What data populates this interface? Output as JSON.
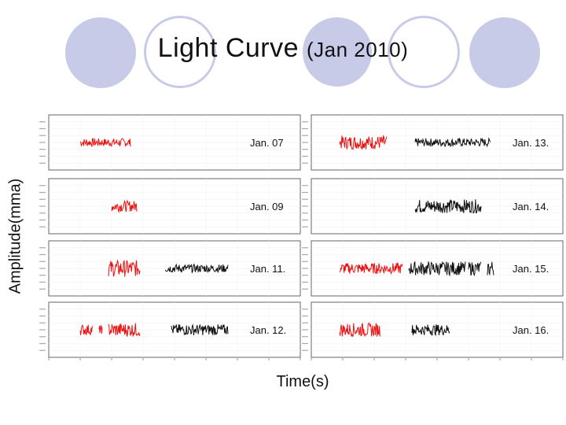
{
  "slide": {
    "title_main": "Light Curve",
    "title_paren": "(Jan 2010)"
  },
  "chart_data": {
    "type": "line",
    "title": "Light Curve (Jan 2010)",
    "xlabel": "Time(s)",
    "ylabel": "Amplitude(mma)",
    "layout": "4x2 grid of panels",
    "colors": {
      "first_night": "#ee1111",
      "second_night": "#111111"
    },
    "xlim": [
      0,
      80000
    ],
    "ylim": [
      -20,
      20
    ],
    "grid": true,
    "panels": [
      {
        "label": "Jan. 07",
        "segments": [
          {
            "color": "first_night",
            "start": 10000,
            "end": 26000,
            "amplitude": 3
          }
        ]
      },
      {
        "label": "Jan. 13.",
        "segments": [
          {
            "color": "first_night",
            "start": 9000,
            "end": 24000,
            "amplitude": 5
          },
          {
            "color": "second_night",
            "start": 33000,
            "end": 57000,
            "amplitude": 3
          }
        ]
      },
      {
        "label": "Jan. 09",
        "segments": [
          {
            "color": "first_night",
            "start": 20000,
            "end": 28000,
            "amplitude": 4
          }
        ]
      },
      {
        "label": "Jan. 14.",
        "segments": [
          {
            "color": "second_night",
            "start": 33000,
            "end": 54000,
            "amplitude": 5
          }
        ]
      },
      {
        "label": "Jan. 11.",
        "segments": [
          {
            "color": "first_night",
            "start": 19000,
            "end": 29000,
            "amplitude": 6
          },
          {
            "color": "second_night",
            "start": 37000,
            "end": 57000,
            "amplitude": 3
          }
        ]
      },
      {
        "label": "Jan. 15.",
        "segments": [
          {
            "color": "first_night",
            "start": 9000,
            "end": 29000,
            "amplitude": 4
          },
          {
            "color": "second_night",
            "start": 31000,
            "end": 49000,
            "amplitude": 5
          },
          {
            "color": "second_night",
            "start": 50000,
            "end": 54000,
            "amplitude": 5
          },
          {
            "color": "second_night",
            "start": 56000,
            "end": 58000,
            "amplitude": 6
          }
        ]
      },
      {
        "label": "Jan. 12.",
        "segments": [
          {
            "color": "first_night",
            "start": 10000,
            "end": 14000,
            "amplitude": 4
          },
          {
            "color": "first_night",
            "start": 16000,
            "end": 17000,
            "amplitude": 3
          },
          {
            "color": "first_night",
            "start": 19000,
            "end": 29000,
            "amplitude": 5
          },
          {
            "color": "second_night",
            "start": 39000,
            "end": 57000,
            "amplitude": 4
          }
        ]
      },
      {
        "label": "Jan. 16.",
        "segments": [
          {
            "color": "first_night",
            "start": 9000,
            "end": 22000,
            "amplitude": 5
          },
          {
            "color": "second_night",
            "start": 32000,
            "end": 44000,
            "amplitude": 4
          }
        ]
      }
    ]
  }
}
